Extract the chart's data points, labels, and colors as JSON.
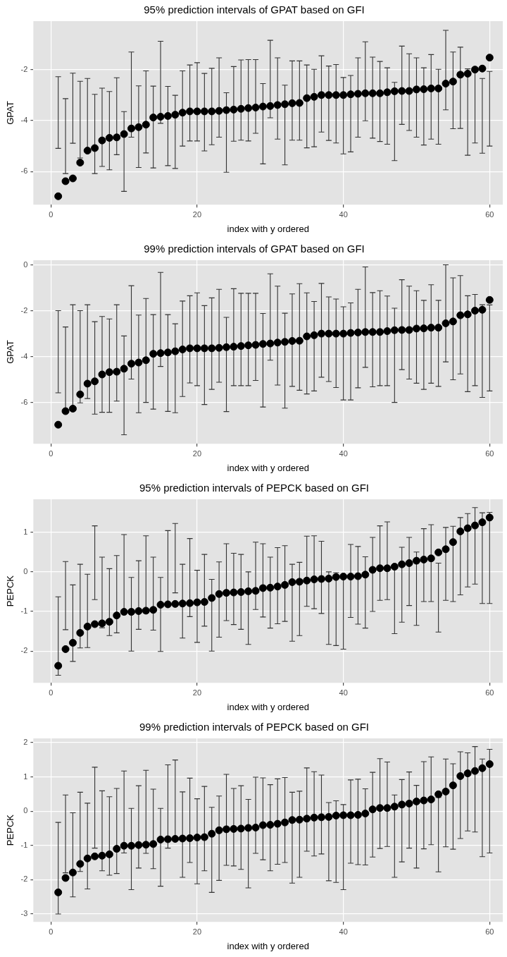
{
  "chart_data": [
    {
      "type": "scatter",
      "title": "95% prediction intervals of GPAT based on GFI",
      "xlabel": "index with y ordered",
      "ylabel": "GPAT",
      "xlim": [
        -2.4,
        61.8
      ],
      "xticks": [
        0,
        20,
        40,
        60
      ],
      "ylim": [
        -7.3,
        -0.1
      ],
      "yticks": [
        -6,
        -4,
        -2
      ],
      "grid": true,
      "legend": false,
      "marker": "circle",
      "x": [
        1,
        2,
        3,
        4,
        5,
        6,
        7,
        8,
        9,
        10,
        11,
        12,
        13,
        14,
        15,
        16,
        17,
        18,
        19,
        20,
        21,
        22,
        23,
        24,
        25,
        26,
        27,
        28,
        29,
        30,
        31,
        32,
        33,
        34,
        35,
        36,
        37,
        38,
        39,
        40,
        41,
        42,
        43,
        44,
        45,
        46,
        47,
        48,
        49,
        50,
        51,
        52,
        53,
        54,
        55,
        56,
        57,
        58,
        59,
        60
      ],
      "series": [
        {
          "color": "#000000",
          "values": [
            -6.97,
            -6.38,
            -6.27,
            -5.65,
            -5.18,
            -5.08,
            -4.78,
            -4.68,
            -4.66,
            -4.53,
            -4.31,
            -4.26,
            -4.16,
            -3.88,
            -3.85,
            -3.82,
            -3.77,
            -3.69,
            -3.64,
            -3.64,
            -3.64,
            -3.64,
            -3.62,
            -3.59,
            -3.57,
            -3.54,
            -3.51,
            -3.49,
            -3.45,
            -3.43,
            -3.39,
            -3.36,
            -3.32,
            -3.31,
            -3.12,
            -3.07,
            -3.0,
            -3.0,
            -3.0,
            -3.0,
            -2.97,
            -2.95,
            -2.93,
            -2.93,
            -2.93,
            -2.89,
            -2.85,
            -2.84,
            -2.84,
            -2.78,
            -2.77,
            -2.74,
            -2.74,
            -2.55,
            -2.47,
            -2.2,
            -2.16,
            -2.0,
            -1.96,
            -1.53
          ],
          "errors": [
            [
              -5.09,
              -2.28
            ],
            [
              -6.08,
              -3.14
            ],
            [
              -4.89,
              -2.14
            ],
            [
              -5.47,
              -2.46
            ],
            [
              -5.2,
              -2.35
            ],
            [
              -6.08,
              -2.97
            ],
            [
              -5.8,
              -2.73
            ],
            [
              -5.93,
              -2.86
            ],
            [
              -5.34,
              -2.32
            ],
            [
              -6.78,
              -3.65
            ],
            [
              -4.65,
              -1.31
            ],
            [
              -5.84,
              -2.64
            ],
            [
              -5.27,
              -2.05
            ],
            [
              -5.86,
              -2.65
            ],
            [
              -4.11,
              -0.89
            ],
            [
              -5.77,
              -2.66
            ],
            [
              -5.88,
              -3.01
            ],
            [
              -5.0,
              -2.05
            ],
            [
              -4.8,
              -1.82
            ],
            [
              -4.8,
              -1.73
            ],
            [
              -5.19,
              -2.15
            ],
            [
              -4.95,
              -1.95
            ],
            [
              -4.65,
              -1.54
            ],
            [
              -6.03,
              -2.91
            ],
            [
              -4.81,
              -1.88
            ],
            [
              -4.77,
              -1.62
            ],
            [
              -4.8,
              -1.61
            ],
            [
              -4.5,
              -1.61
            ],
            [
              -5.7,
              -2.55
            ],
            [
              -3.89,
              -0.85
            ],
            [
              -4.73,
              -1.54
            ],
            [
              -5.74,
              -2.61
            ],
            [
              -4.77,
              -1.66
            ],
            [
              -4.77,
              -1.66
            ],
            [
              -5.07,
              -1.82
            ],
            [
              -5.03,
              -1.99
            ],
            [
              -4.45,
              -1.46
            ],
            [
              -4.78,
              -1.86
            ],
            [
              -4.88,
              -1.8
            ],
            [
              -5.31,
              -2.31
            ],
            [
              -5.23,
              -2.23
            ],
            [
              -4.65,
              -1.54
            ],
            [
              -4.01,
              -0.91
            ],
            [
              -4.69,
              -1.51
            ],
            [
              -4.82,
              -1.68
            ],
            [
              -4.93,
              -1.93
            ],
            [
              -5.57,
              -2.5
            ],
            [
              -4.15,
              -1.08
            ],
            [
              -4.39,
              -1.38
            ],
            [
              -4.65,
              -1.54
            ],
            [
              -4.96,
              -1.93
            ],
            [
              -4.73,
              -1.41
            ],
            [
              -4.93,
              -1.99
            ],
            [
              -3.58,
              -0.46
            ],
            [
              -4.32,
              -1.31
            ],
            [
              -4.31,
              -1.12
            ],
            [
              -5.36,
              -1.97
            ],
            [
              -4.88,
              -1.95
            ],
            [
              -5.28,
              -2.35
            ],
            [
              -5.0,
              -2.07
            ]
          ]
        }
      ]
    },
    {
      "type": "scatter",
      "title": "99% prediction intervals of GPAT based on GFI",
      "xlabel": "index with y ordered",
      "ylabel": "GPAT",
      "xlim": [
        -2.4,
        61.8
      ],
      "xticks": [
        0,
        20,
        40,
        60
      ],
      "ylim": [
        -7.8,
        0.2
      ],
      "yticks": [
        -6,
        -4,
        -2,
        0
      ],
      "grid": true,
      "legend": false,
      "marker": "circle",
      "x": [
        1,
        2,
        3,
        4,
        5,
        6,
        7,
        8,
        9,
        10,
        11,
        12,
        13,
        14,
        15,
        16,
        17,
        18,
        19,
        20,
        21,
        22,
        23,
        24,
        25,
        26,
        27,
        28,
        29,
        30,
        31,
        32,
        33,
        34,
        35,
        36,
        37,
        38,
        39,
        40,
        41,
        42,
        43,
        44,
        45,
        46,
        47,
        48,
        49,
        50,
        51,
        52,
        53,
        54,
        55,
        56,
        57,
        58,
        59,
        60
      ],
      "series": [
        {
          "color": "#000000",
          "values": [
            -6.97,
            -6.38,
            -6.27,
            -5.65,
            -5.18,
            -5.08,
            -4.78,
            -4.68,
            -4.66,
            -4.53,
            -4.31,
            -4.26,
            -4.16,
            -3.88,
            -3.85,
            -3.82,
            -3.77,
            -3.69,
            -3.64,
            -3.64,
            -3.64,
            -3.64,
            -3.62,
            -3.59,
            -3.57,
            -3.54,
            -3.51,
            -3.49,
            -3.45,
            -3.43,
            -3.39,
            -3.36,
            -3.32,
            -3.31,
            -3.12,
            -3.07,
            -3.0,
            -3.0,
            -3.0,
            -3.0,
            -2.97,
            -2.95,
            -2.93,
            -2.93,
            -2.93,
            -2.89,
            -2.85,
            -2.84,
            -2.84,
            -2.78,
            -2.77,
            -2.74,
            -2.74,
            -2.55,
            -2.47,
            -2.2,
            -2.16,
            -2.0,
            -1.96,
            -1.53
          ],
          "errors": [
            [
              -5.58,
              -2.0
            ],
            [
              -6.39,
              -2.71
            ],
            [
              -6.28,
              -1.74
            ],
            [
              -6.02,
              -2.0
            ],
            [
              -5.83,
              -1.74
            ],
            [
              -6.51,
              -2.48
            ],
            [
              -6.43,
              -2.25
            ],
            [
              -6.43,
              -2.36
            ],
            [
              -5.94,
              -1.74
            ],
            [
              -7.41,
              -3.1
            ],
            [
              -4.98,
              -0.91
            ],
            [
              -6.45,
              -2.19
            ],
            [
              -6.0,
              -1.47
            ],
            [
              -6.29,
              -2.17
            ],
            [
              -4.43,
              -0.33
            ],
            [
              -6.39,
              -2.17
            ],
            [
              -6.45,
              -2.57
            ],
            [
              -5.74,
              -1.58
            ],
            [
              -5.15,
              -1.35
            ],
            [
              -5.27,
              -1.22
            ],
            [
              -6.09,
              -1.78
            ],
            [
              -5.43,
              -1.44
            ],
            [
              -5.12,
              -1.07
            ],
            [
              -6.4,
              -2.29
            ],
            [
              -5.27,
              -1.04
            ],
            [
              -5.27,
              -1.24
            ],
            [
              -5.27,
              -1.24
            ],
            [
              -5.04,
              -1.24
            ],
            [
              -6.2,
              -2.12
            ],
            [
              -4.16,
              -0.39
            ],
            [
              -5.24,
              -0.93
            ],
            [
              -6.25,
              -2.11
            ],
            [
              -5.3,
              -1.27
            ],
            [
              -5.47,
              -0.82
            ],
            [
              -5.63,
              -1.22
            ],
            [
              -5.5,
              -1.6
            ],
            [
              -4.9,
              -0.81
            ],
            [
              -5.09,
              -1.4
            ],
            [
              -5.35,
              -1.49
            ],
            [
              -5.89,
              -1.83
            ],
            [
              -5.89,
              -1.66
            ],
            [
              -5.36,
              -1.07
            ],
            [
              -4.47,
              -0.09
            ],
            [
              -5.32,
              -1.21
            ],
            [
              -5.27,
              -1.13
            ],
            [
              -5.27,
              -1.36
            ],
            [
              -6.0,
              -1.89
            ],
            [
              -4.57,
              -0.65
            ],
            [
              -4.98,
              -0.93
            ],
            [
              -5.16,
              -1.13
            ],
            [
              -5.43,
              -1.55
            ],
            [
              -5.16,
              -0.87
            ],
            [
              -5.3,
              -1.55
            ],
            [
              -4.23,
              0.0
            ],
            [
              -5.01,
              -0.57
            ],
            [
              -4.76,
              -0.47
            ],
            [
              -5.53,
              -1.35
            ],
            [
              -5.27,
              -1.29
            ],
            [
              -5.78,
              -1.74
            ],
            [
              -5.5,
              -1.75
            ]
          ]
        }
      ]
    },
    {
      "type": "scatter",
      "title": "95% prediction intervals of PEPCK based on GFI",
      "xlabel": "index with y ordered",
      "ylabel": "PEPCK",
      "xlim": [
        -2.4,
        61.8
      ],
      "xticks": [
        0,
        20,
        40,
        60
      ],
      "ylim": [
        -2.8,
        1.83
      ],
      "yticks": [
        -2,
        -1,
        0,
        1
      ],
      "grid": true,
      "legend": false,
      "marker": "circle",
      "x": [
        1,
        2,
        3,
        4,
        5,
        6,
        7,
        8,
        9,
        10,
        11,
        12,
        13,
        14,
        15,
        16,
        17,
        18,
        19,
        20,
        21,
        22,
        23,
        24,
        25,
        26,
        27,
        28,
        29,
        30,
        31,
        32,
        33,
        34,
        35,
        36,
        37,
        38,
        39,
        40,
        41,
        42,
        43,
        44,
        45,
        46,
        47,
        48,
        49,
        50,
        51,
        52,
        53,
        54,
        55,
        56,
        57,
        58,
        59,
        60
      ],
      "series": [
        {
          "color": "#000000",
          "values": [
            -2.37,
            -1.95,
            -1.79,
            -1.54,
            -1.38,
            -1.32,
            -1.3,
            -1.26,
            -1.1,
            -1.01,
            -1.01,
            -0.99,
            -0.98,
            -0.96,
            -0.83,
            -0.82,
            -0.81,
            -0.8,
            -0.79,
            -0.77,
            -0.76,
            -0.66,
            -0.56,
            -0.53,
            -0.52,
            -0.51,
            -0.49,
            -0.48,
            -0.41,
            -0.4,
            -0.37,
            -0.33,
            -0.26,
            -0.25,
            -0.22,
            -0.19,
            -0.18,
            -0.17,
            -0.13,
            -0.12,
            -0.12,
            -0.11,
            -0.07,
            0.05,
            0.09,
            0.09,
            0.13,
            0.19,
            0.22,
            0.28,
            0.31,
            0.34,
            0.49,
            0.57,
            0.75,
            1.02,
            1.1,
            1.17,
            1.25,
            1.37
          ],
          "errors": [
            [
              -2.61,
              -0.63
            ],
            [
              -1.46,
              0.26
            ],
            [
              -2.26,
              -0.33
            ],
            [
              -1.92,
              0.19
            ],
            [
              -1.91,
              -0.06
            ],
            [
              -0.7,
              1.16
            ],
            [
              -1.41,
              0.37
            ],
            [
              -1.61,
              0.08
            ],
            [
              -1.54,
              0.41
            ],
            [
              -1.03,
              0.94
            ],
            [
              -2.0,
              -0.14
            ],
            [
              -1.45,
              0.28
            ],
            [
              -1.04,
              0.91
            ],
            [
              -1.47,
              0.37
            ],
            [
              -2.01,
              -0.14
            ],
            [
              -0.84,
              1.04
            ],
            [
              -0.53,
              1.22
            ],
            [
              -1.67,
              0.19
            ],
            [
              -1.13,
              0.84
            ],
            [
              -1.78,
              0.04
            ],
            [
              -1.37,
              0.44
            ],
            [
              -2.0,
              -0.19
            ],
            [
              -1.65,
              0.25
            ],
            [
              -1.23,
              0.71
            ],
            [
              -1.33,
              0.47
            ],
            [
              -1.45,
              0.44
            ],
            [
              -1.83,
              0.0
            ],
            [
              -0.95,
              0.75
            ],
            [
              -1.14,
              0.71
            ],
            [
              -1.42,
              0.37
            ],
            [
              -1.31,
              0.61
            ],
            [
              -1.25,
              0.66
            ],
            [
              -1.75,
              0.19
            ],
            [
              -1.61,
              0.24
            ],
            [
              -0.87,
              0.9
            ],
            [
              -0.93,
              0.91
            ],
            [
              -1.05,
              0.77
            ],
            [
              -1.83,
              0.0
            ],
            [
              -1.86,
              -0.02
            ],
            [
              -1.95,
              -0.1
            ],
            [
              -1.15,
              0.69
            ],
            [
              -1.32,
              0.64
            ],
            [
              -1.42,
              0.38
            ],
            [
              -1.0,
              0.87
            ],
            [
              -0.72,
              1.16
            ],
            [
              -0.7,
              1.26
            ],
            [
              -1.56,
              0.1
            ],
            [
              -1.27,
              0.62
            ],
            [
              -0.85,
              0.87
            ],
            [
              -1.35,
              0.5
            ],
            [
              -0.75,
              1.09
            ],
            [
              -0.75,
              1.19
            ],
            [
              -1.52,
              0.22
            ],
            [
              -0.72,
              1.12
            ],
            [
              -0.75,
              1.15
            ],
            [
              -0.58,
              1.37
            ],
            [
              -0.38,
              1.47
            ],
            [
              -0.31,
              1.62
            ],
            [
              -0.8,
              1.49
            ],
            [
              -0.8,
              1.5
            ]
          ]
        }
      ]
    },
    {
      "type": "scatter",
      "title": "99% prediction intervals of PEPCK based on GFI",
      "xlabel": "index with y ordered",
      "ylabel": "PEPCK",
      "xlim": [
        -2.4,
        61.8
      ],
      "xticks": [
        0,
        20,
        40,
        60
      ],
      "ylim": [
        -3.23,
        2.12
      ],
      "yticks": [
        -3,
        -2,
        -1,
        0,
        1,
        2
      ],
      "grid": true,
      "legend": false,
      "marker": "circle",
      "x": [
        1,
        2,
        3,
        4,
        5,
        6,
        7,
        8,
        9,
        10,
        11,
        12,
        13,
        14,
        15,
        16,
        17,
        18,
        19,
        20,
        21,
        22,
        23,
        24,
        25,
        26,
        27,
        28,
        29,
        30,
        31,
        32,
        33,
        34,
        35,
        36,
        37,
        38,
        39,
        40,
        41,
        42,
        43,
        44,
        45,
        46,
        47,
        48,
        49,
        50,
        51,
        52,
        53,
        54,
        55,
        56,
        57,
        58,
        59,
        60
      ],
      "series": [
        {
          "color": "#000000",
          "values": [
            -2.37,
            -1.95,
            -1.79,
            -1.54,
            -1.38,
            -1.32,
            -1.3,
            -1.26,
            -1.1,
            -1.01,
            -1.01,
            -0.99,
            -0.98,
            -0.96,
            -0.83,
            -0.82,
            -0.81,
            -0.8,
            -0.79,
            -0.77,
            -0.76,
            -0.66,
            -0.56,
            -0.53,
            -0.52,
            -0.51,
            -0.49,
            -0.48,
            -0.41,
            -0.4,
            -0.37,
            -0.33,
            -0.26,
            -0.25,
            -0.22,
            -0.19,
            -0.18,
            -0.17,
            -0.13,
            -0.12,
            -0.12,
            -0.11,
            -0.07,
            0.05,
            0.09,
            0.09,
            0.13,
            0.19,
            0.22,
            0.28,
            0.31,
            0.34,
            0.49,
            0.57,
            0.75,
            1.02,
            1.1,
            1.17,
            1.25,
            1.37
          ],
          "errors": [
            [
              -3.0,
              -0.33
            ],
            [
              -1.8,
              0.47
            ],
            [
              -2.5,
              -0.05
            ],
            [
              -1.76,
              0.55
            ],
            [
              -2.27,
              0.23
            ],
            [
              -1.08,
              1.28
            ],
            [
              -1.74,
              0.59
            ],
            [
              -1.87,
              0.42
            ],
            [
              -1.82,
              0.66
            ],
            [
              -1.22,
              1.17
            ],
            [
              -2.29,
              0.08
            ],
            [
              -1.66,
              0.74
            ],
            [
              -1.23,
              1.19
            ],
            [
              -1.68,
              0.64
            ],
            [
              -2.19,
              0.08
            ],
            [
              -1.08,
              1.35
            ],
            [
              -0.85,
              1.49
            ],
            [
              -1.93,
              0.56
            ],
            [
              -1.5,
              0.96
            ],
            [
              -2.12,
              0.36
            ],
            [
              -1.74,
              0.72
            ],
            [
              -2.37,
              0.11
            ],
            [
              -2.02,
              0.44
            ],
            [
              -1.58,
              1.07
            ],
            [
              -1.6,
              0.66
            ],
            [
              -1.7,
              0.74
            ],
            [
              -2.24,
              0.34
            ],
            [
              -1.23,
              0.99
            ],
            [
              -1.42,
              0.97
            ],
            [
              -1.74,
              0.77
            ],
            [
              -1.55,
              0.94
            ],
            [
              -1.5,
              0.98
            ],
            [
              -2.1,
              0.55
            ],
            [
              -1.93,
              0.58
            ],
            [
              -1.17,
              1.26
            ],
            [
              -1.31,
              1.15
            ],
            [
              -1.25,
              1.05
            ],
            [
              -2.03,
              0.25
            ],
            [
              -2.08,
              0.3
            ],
            [
              -2.29,
              0.19
            ],
            [
              -1.52,
              0.91
            ],
            [
              -1.56,
              0.93
            ],
            [
              -1.57,
              0.65
            ],
            [
              -1.34,
              1.13
            ],
            [
              -1.09,
              1.53
            ],
            [
              -1.03,
              1.43
            ],
            [
              -1.93,
              0.47
            ],
            [
              -1.48,
              0.92
            ],
            [
              -1.08,
              1.14
            ],
            [
              -1.66,
              0.75
            ],
            [
              -1.1,
              1.44
            ],
            [
              -0.98,
              1.58
            ],
            [
              -1.77,
              0.4
            ],
            [
              -1.04,
              1.52
            ],
            [
              -1.11,
              1.38
            ],
            [
              -0.8,
              1.73
            ],
            [
              -0.58,
              1.7
            ],
            [
              -0.61,
              1.88
            ],
            [
              -1.33,
              1.52
            ],
            [
              -1.22,
              1.8
            ]
          ]
        }
      ]
    }
  ]
}
